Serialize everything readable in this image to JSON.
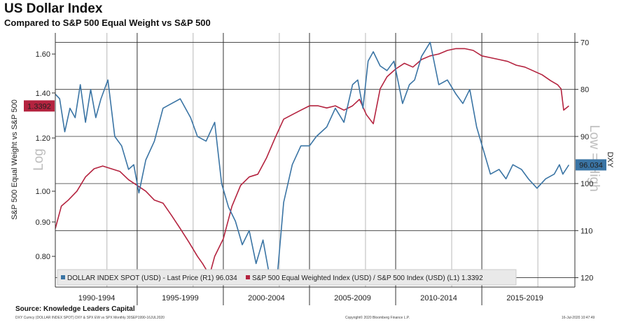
{
  "header": {
    "title": "US Dollar Index",
    "subtitle": "Compared to S&P 500 Equal Weight vs S&P 500"
  },
  "footer": {
    "source": "Source: Knowledge Leaders Capital",
    "meta_left": "DXY Curncy (DOLLAR INDEX SPOT) DXY & SPX EW vs SPX  Monthly 30SEP1990-16JUL2020",
    "meta_center": "Copyright© 2020 Bloomberg Finance L.P.",
    "meta_right": "16-Jul-2020 10:47:49"
  },
  "colors": {
    "dxy": "#3a74a4",
    "ew": "#b4233f",
    "grid": "#333333",
    "legend_bg": "#e9e9e9",
    "watermark": "#bdbdbd"
  },
  "chart_data": {
    "type": "line",
    "categories": [
      "1990-1994",
      "1995-1999",
      "2000-2004",
      "2005-2009",
      "2010-2014",
      "2015-2019"
    ],
    "left_axis": {
      "label": "S&P 500 Equal Weight vs S&P 500",
      "scale": "log",
      "range": [
        0.72,
        1.72
      ],
      "ticks": [
        "0.80",
        "0.90",
        "1.00",
        "1.20",
        "1.40",
        "1.60"
      ],
      "watermark": "Log",
      "last_value_label": "1.3392"
    },
    "right_axis": {
      "label": "DXY",
      "inverted": true,
      "range": [
        68,
        122
      ],
      "ticks": [
        "70",
        "80",
        "90",
        "100",
        "110",
        "120"
      ],
      "watermark": "Low = High",
      "last_value_label": "96.034"
    },
    "series": [
      {
        "name": "DOLLAR INDEX SPOT (USD) - Last Price (R1) 96.034",
        "axis": "right",
        "x": [
          1990.75,
          1991.0,
          1991.3,
          1991.6,
          1991.9,
          1992.2,
          1992.5,
          1992.8,
          1993.1,
          1993.4,
          1993.8,
          1994.2,
          1994.6,
          1995.0,
          1995.3,
          1995.6,
          1996.0,
          1996.5,
          1997.0,
          1997.5,
          1998.0,
          1998.6,
          1999.0,
          1999.5,
          2000.0,
          2000.4,
          2000.8,
          2001.2,
          2001.6,
          2002.0,
          2002.4,
          2002.8,
          2003.2,
          2003.6,
          2004.0,
          2004.5,
          2005.0,
          2005.5,
          2005.9,
          2006.5,
          2007.0,
          2007.5,
          2008.0,
          2008.3,
          2008.6,
          2008.9,
          2009.2,
          2009.6,
          2010.0,
          2010.4,
          2010.9,
          2011.3,
          2011.6,
          2012.0,
          2012.5,
          2013.0,
          2013.5,
          2014.0,
          2014.4,
          2014.8,
          2015.2,
          2015.6,
          2016.0,
          2016.5,
          2016.9,
          2017.3,
          2017.8,
          2018.2,
          2018.7,
          2019.2,
          2019.7,
          2020.0,
          2020.2,
          2020.55
        ],
        "values": [
          81,
          82,
          89,
          84,
          86,
          79,
          87,
          80,
          86,
          82,
          78,
          90,
          92,
          97,
          96,
          102,
          95,
          91,
          84,
          83,
          82,
          86,
          90,
          91,
          87,
          100,
          105,
          108,
          113,
          110,
          117,
          112,
          120,
          121,
          104,
          96,
          92,
          92,
          90,
          88,
          84,
          87,
          79,
          78,
          84,
          74,
          72,
          75,
          76,
          74,
          83,
          79,
          78,
          73,
          70,
          79,
          78,
          81,
          83,
          80,
          88,
          93,
          98,
          97,
          99,
          96,
          97,
          99,
          101,
          99,
          98,
          96,
          98,
          96.034
        ]
      },
      {
        "name": "S&P 500 Equal Weighted Index (USD) / S&P 500 Index (USD) (L1) 1.3392",
        "axis": "left",
        "x": [
          1990.75,
          1991.1,
          1991.5,
          1992.0,
          1992.5,
          1993.0,
          1993.5,
          1994.0,
          1994.5,
          1995.0,
          1995.5,
          1996.0,
          1996.5,
          1997.0,
          1997.5,
          1998.0,
          1998.5,
          1999.0,
          1999.3,
          1999.7,
          2000.0,
          2000.5,
          2001.0,
          2001.5,
          2002.0,
          2002.5,
          2003.0,
          2003.5,
          2004.0,
          2004.5,
          2005.0,
          2005.5,
          2006.0,
          2006.5,
          2007.0,
          2007.5,
          2008.0,
          2008.4,
          2008.8,
          2009.2,
          2009.6,
          2010.0,
          2010.5,
          2011.0,
          2011.5,
          2012.0,
          2012.5,
          2013.0,
          2013.5,
          2014.0,
          2014.5,
          2015.0,
          2015.5,
          2016.0,
          2016.5,
          2017.0,
          2017.5,
          2018.0,
          2018.5,
          2019.0,
          2019.5,
          2019.9,
          2020.1,
          2020.25,
          2020.55
        ],
        "values": [
          0.88,
          0.95,
          0.97,
          1.0,
          1.05,
          1.08,
          1.09,
          1.08,
          1.07,
          1.04,
          1.02,
          1.0,
          0.97,
          0.96,
          0.92,
          0.88,
          0.84,
          0.8,
          0.78,
          0.75,
          0.8,
          0.85,
          0.95,
          1.02,
          1.05,
          1.06,
          1.12,
          1.2,
          1.28,
          1.3,
          1.32,
          1.34,
          1.34,
          1.33,
          1.34,
          1.32,
          1.34,
          1.37,
          1.3,
          1.26,
          1.42,
          1.48,
          1.52,
          1.55,
          1.53,
          1.57,
          1.59,
          1.6,
          1.62,
          1.63,
          1.63,
          1.62,
          1.59,
          1.58,
          1.57,
          1.56,
          1.54,
          1.53,
          1.51,
          1.49,
          1.46,
          1.44,
          1.42,
          1.32,
          1.3392
        ]
      }
    ]
  }
}
